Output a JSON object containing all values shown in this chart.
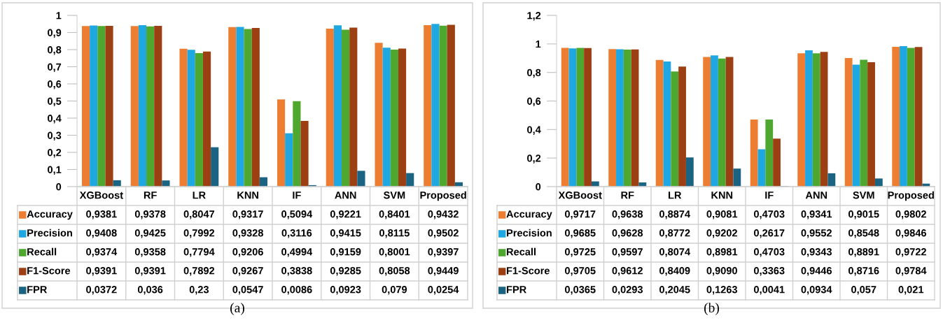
{
  "chart_data": [
    {
      "type": "bar",
      "annotations": [
        "(a)"
      ],
      "categories": [
        "XGBoost",
        "RF",
        "LR",
        "KNN",
        "IF",
        "ANN",
        "SVM",
        "Proposed"
      ],
      "ylim": [
        0,
        1
      ],
      "yticks": [
        0,
        {
          "value": 0.1,
          "label": "0,1"
        },
        {
          "value": 0.2,
          "label": "0,2"
        },
        {
          "value": 0.3,
          "label": "0,3"
        },
        {
          "value": 0.4,
          "label": "0,4"
        },
        {
          "value": 0.5,
          "label": "0,5"
        },
        {
          "value": 0.6,
          "label": "0,6"
        },
        {
          "value": 0.7,
          "label": "0,7"
        },
        {
          "value": 0.8,
          "label": "0,8"
        },
        {
          "value": 0.9,
          "label": "0,9"
        },
        1
      ],
      "grid": false,
      "legend": "bottom",
      "series": [
        {
          "name": "Accuracy",
          "color": "#ed7d31",
          "values": [
            0.9381,
            0.9378,
            0.8047,
            0.9317,
            0.5094,
            0.9221,
            0.8401,
            0.9432
          ],
          "value_labels": [
            "0,9381",
            "0,9378",
            "0,8047",
            "0,9317",
            "0,5094",
            "0,9221",
            "0,8401",
            "0,9432"
          ]
        },
        {
          "name": "Precision",
          "color": "#1ea7e1",
          "values": [
            0.9408,
            0.9425,
            0.7992,
            0.9328,
            0.3116,
            0.9415,
            0.8115,
            0.9502
          ],
          "value_labels": [
            "0,9408",
            "0,9425",
            "0,7992",
            "0,9328",
            "0,3116",
            "0,9415",
            "0,8115",
            "0,9502"
          ]
        },
        {
          "name": "Recall",
          "color": "#4ea72e",
          "values": [
            0.9374,
            0.9358,
            0.7794,
            0.9206,
            0.4994,
            0.9159,
            0.8001,
            0.9397
          ],
          "value_labels": [
            "0,9374",
            "0,9358",
            "0,7794",
            "0,9206",
            "0,4994",
            "0,9159",
            "0,8001",
            "0,9397"
          ]
        },
        {
          "name": "F1-Score",
          "color": "#9c3f12",
          "values": [
            0.9391,
            0.9391,
            0.7892,
            0.9267,
            0.3838,
            0.9285,
            0.8058,
            0.9449
          ],
          "value_labels": [
            "0,9391",
            "0,9391",
            "0,7892",
            "0,9267",
            "0,3838",
            "0,9285",
            "0,8058",
            "0,9449"
          ]
        },
        {
          "name": "FPR",
          "color": "#1a6382",
          "values": [
            0.0372,
            0.036,
            0.23,
            0.0547,
            0.0086,
            0.0923,
            0.079,
            0.0254
          ],
          "value_labels": [
            "0,0372",
            "0,036",
            "0,23",
            "0,0547",
            "0,0086",
            "0,0923",
            "0,079",
            "0,0254"
          ]
        }
      ]
    },
    {
      "type": "bar",
      "annotations": [
        "(b)"
      ],
      "categories": [
        "XGBoost",
        "RF",
        "LR",
        "KNN",
        "IF",
        "ANN",
        "SVM",
        "Proposed"
      ],
      "ylim": [
        0,
        1.2
      ],
      "yticks": [
        0,
        {
          "value": 0.2,
          "label": "0,2"
        },
        {
          "value": 0.4,
          "label": "0,4"
        },
        {
          "value": 0.6,
          "label": "0,6"
        },
        {
          "value": 0.8,
          "label": "0,8"
        },
        1,
        {
          "value": 1.2,
          "label": "1,2"
        }
      ],
      "grid": false,
      "legend": "bottom",
      "series": [
        {
          "name": "Accuracy",
          "color": "#ed7d31",
          "values": [
            0.9717,
            0.9638,
            0.8874,
            0.9081,
            0.4703,
            0.9341,
            0.9015,
            0.9802
          ],
          "value_labels": [
            "0,9717",
            "0,9638",
            "0,8874",
            "0,9081",
            "0,4703",
            "0,9341",
            "0,9015",
            "0,9802"
          ]
        },
        {
          "name": "Precision",
          "color": "#1ea7e1",
          "values": [
            0.9685,
            0.9628,
            0.8772,
            0.9202,
            0.2617,
            0.9552,
            0.8548,
            0.9846
          ],
          "value_labels": [
            "0,9685",
            "0,9628",
            "0,8772",
            "0,9202",
            "0,2617",
            "0,9552",
            "0,8548",
            "0,9846"
          ]
        },
        {
          "name": "Recall",
          "color": "#4ea72e",
          "values": [
            0.9725,
            0.9597,
            0.8074,
            0.8981,
            0.4703,
            0.9343,
            0.8891,
            0.9722
          ],
          "value_labels": [
            "0,9725",
            "0,9597",
            "0,8074",
            "0,8981",
            "0,4703",
            "0,9343",
            "0,8891",
            "0,9722"
          ]
        },
        {
          "name": "F1-Score",
          "color": "#9c3f12",
          "values": [
            0.9705,
            0.9612,
            0.8409,
            0.909,
            0.3363,
            0.9446,
            0.8716,
            0.9784
          ],
          "value_labels": [
            "0,9705",
            "0,9612",
            "0,8409",
            "0,9090",
            "0,3363",
            "0,9446",
            "0,8716",
            "0,9784"
          ]
        },
        {
          "name": "FPR",
          "color": "#1a6382",
          "values": [
            0.0365,
            0.0293,
            0.2045,
            0.1263,
            0.0041,
            0.0934,
            0.057,
            0.021
          ],
          "value_labels": [
            "0,0365",
            "0,0293",
            "0,2045",
            "0,1263",
            "0,0041",
            "0,0934",
            "0,057",
            "0,021"
          ]
        }
      ]
    }
  ]
}
